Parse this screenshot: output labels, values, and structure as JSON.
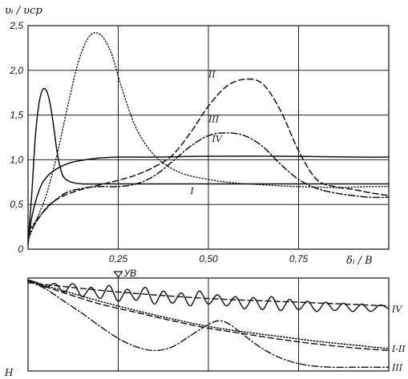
{
  "chart_data": [
    {
      "type": "line",
      "ylabel": "υᵢ / υср",
      "xlabel": "δᵢ / B",
      "ylim": [
        0,
        2.5
      ],
      "xlim": [
        0,
        1
      ],
      "xticks": [
        0.25,
        0.5,
        0.75
      ],
      "xtick_labels": [
        "0,25",
        "0,50",
        "0,75"
      ],
      "yticks": [
        0,
        0.5,
        1.0,
        1.5,
        2.0,
        2.5
      ],
      "ytick_labels": [
        "0",
        "0,5",
        "1,0",
        "1,5",
        "2,0",
        "2,5"
      ],
      "grid": true,
      "series": [
        {
          "name": "I",
          "style": "dotted",
          "label_at": [
            0.45,
            0.62
          ],
          "x": [
            0.0,
            0.02,
            0.05,
            0.08,
            0.11,
            0.14,
            0.17,
            0.2,
            0.23,
            0.26,
            0.3,
            0.35,
            0.4,
            0.45,
            0.55,
            0.65,
            0.75,
            0.85,
            0.95,
            1.0
          ],
          "y": [
            0.1,
            0.3,
            0.6,
            1.05,
            1.6,
            2.1,
            2.38,
            2.4,
            2.2,
            1.8,
            1.35,
            1.05,
            0.9,
            0.82,
            0.75,
            0.72,
            0.7,
            0.69,
            0.7,
            0.7
          ]
        },
        {
          "name": "II",
          "style": "dashed",
          "label_at": [
            0.5,
            1.92
          ],
          "x": [
            0.0,
            0.03,
            0.06,
            0.1,
            0.15,
            0.2,
            0.25,
            0.3,
            0.35,
            0.4,
            0.45,
            0.5,
            0.55,
            0.6,
            0.65,
            0.7,
            0.75,
            0.8,
            0.85,
            0.9,
            0.95,
            1.0
          ],
          "y": [
            0.15,
            0.35,
            0.5,
            0.6,
            0.67,
            0.72,
            0.77,
            0.83,
            0.92,
            1.05,
            1.3,
            1.6,
            1.82,
            1.9,
            1.85,
            1.55,
            1.1,
            0.78,
            0.7,
            0.67,
            0.63,
            0.6
          ]
        },
        {
          "name": "III",
          "style": "dash-dot",
          "label_at": [
            0.5,
            1.42
          ],
          "x": [
            0.0,
            0.05,
            0.1,
            0.15,
            0.2,
            0.25,
            0.3,
            0.35,
            0.4,
            0.45,
            0.5,
            0.55,
            0.6,
            0.65,
            0.7,
            0.75,
            0.8,
            0.85,
            0.9,
            0.95,
            1.0
          ],
          "y": [
            0.2,
            0.45,
            0.62,
            0.68,
            0.7,
            0.7,
            0.73,
            0.82,
            0.98,
            1.15,
            1.27,
            1.3,
            1.27,
            1.15,
            0.95,
            0.78,
            0.68,
            0.63,
            0.6,
            0.58,
            0.58
          ]
        },
        {
          "name": "IV",
          "style": "solid",
          "label_at": [
            0.51,
            1.2
          ],
          "x": [
            0.0,
            0.01,
            0.02,
            0.03,
            0.04,
            0.05,
            0.06,
            0.07,
            0.08,
            0.09,
            0.1,
            0.12,
            0.15,
            0.2,
            0.3,
            0.5,
            0.7,
            0.9,
            1.0
          ],
          "y": [
            0.1,
            0.6,
            1.25,
            1.62,
            1.78,
            1.78,
            1.65,
            1.4,
            1.1,
            0.9,
            0.8,
            0.75,
            0.73,
            0.73,
            0.73,
            0.73,
            0.73,
            0.73,
            0.73
          ]
        },
        {
          "name": "",
          "style": "solid",
          "x": [
            0.0,
            0.01,
            0.03,
            0.05,
            0.08,
            0.12,
            0.16,
            0.2,
            0.25,
            0.35,
            0.5,
            0.7,
            0.9,
            1.0
          ],
          "y": [
            0.05,
            0.35,
            0.65,
            0.8,
            0.9,
            0.97,
            1.0,
            1.02,
            1.03,
            1.03,
            1.04,
            1.04,
            1.03,
            1.03
          ]
        }
      ]
    },
    {
      "type": "line",
      "ylabel": "H",
      "marker_label": "УВ",
      "marker_x": 0.25,
      "xlim": [
        0,
        1
      ],
      "ylim": [
        -1,
        0
      ],
      "grid": true,
      "series": [
        {
          "name": "IV",
          "style": "solid",
          "x": [
            0.0,
            0.025,
            0.05,
            0.075,
            0.1,
            0.125,
            0.15,
            0.175,
            0.2,
            0.225,
            0.25,
            0.275,
            0.3,
            0.325,
            0.35,
            0.375,
            0.4,
            0.425,
            0.45,
            0.475,
            0.5,
            0.525,
            0.55,
            0.575,
            0.6,
            0.625,
            0.65,
            0.675,
            0.7,
            0.725,
            0.75,
            0.775,
            0.8,
            0.825,
            0.85,
            0.875,
            0.9,
            0.925,
            0.95,
            0.975,
            1.0
          ],
          "y": [
            -0.02,
            -0.05,
            -0.1,
            -0.06,
            -0.15,
            -0.06,
            -0.2,
            -0.1,
            -0.22,
            -0.08,
            -0.25,
            -0.12,
            -0.24,
            -0.1,
            -0.28,
            -0.14,
            -0.27,
            -0.16,
            -0.3,
            -0.14,
            -0.28,
            -0.18,
            -0.3,
            -0.2,
            -0.33,
            -0.21,
            -0.34,
            -0.2,
            -0.35,
            -0.23,
            -0.34,
            -0.25,
            -0.36,
            -0.26,
            -0.35,
            -0.27,
            -0.36,
            -0.28,
            -0.36,
            -0.29,
            -0.33
          ]
        },
        {
          "name": "IV",
          "style": "dashed",
          "x": [
            0.0,
            0.25,
            0.5,
            0.75,
            1.0
          ],
          "y": [
            -0.05,
            -0.15,
            -0.22,
            -0.26,
            -0.3
          ]
        },
        {
          "name": "I-II",
          "style": "dotted",
          "x": [
            0.0,
            0.1,
            0.2,
            0.3,
            0.4,
            0.5,
            0.6,
            0.7,
            0.8,
            0.9,
            1.0
          ],
          "y": [
            -0.03,
            -0.14,
            -0.25,
            -0.35,
            -0.44,
            -0.52,
            -0.58,
            -0.63,
            -0.68,
            -0.72,
            -0.76
          ]
        },
        {
          "name": "I-II",
          "style": "dashed",
          "x": [
            0.0,
            0.1,
            0.2,
            0.3,
            0.4,
            0.5,
            0.6,
            0.7,
            0.8,
            0.9,
            1.0
          ],
          "y": [
            -0.03,
            -0.16,
            -0.28,
            -0.37,
            -0.46,
            -0.54,
            -0.6,
            -0.66,
            -0.71,
            -0.75,
            -0.78
          ]
        },
        {
          "name": "III",
          "style": "dash-dot",
          "x": [
            0.0,
            0.05,
            0.1,
            0.15,
            0.2,
            0.25,
            0.3,
            0.35,
            0.4,
            0.45,
            0.5,
            0.53,
            0.56,
            0.6,
            0.65,
            0.7,
            0.75,
            0.8,
            0.85,
            0.9,
            0.95,
            1.0
          ],
          "y": [
            -0.03,
            -0.12,
            -0.25,
            -0.38,
            -0.52,
            -0.65,
            -0.74,
            -0.78,
            -0.74,
            -0.62,
            -0.5,
            -0.46,
            -0.5,
            -0.62,
            -0.76,
            -0.86,
            -0.92,
            -0.95,
            -0.96,
            -0.96,
            -0.96,
            -0.96
          ]
        }
      ]
    }
  ]
}
